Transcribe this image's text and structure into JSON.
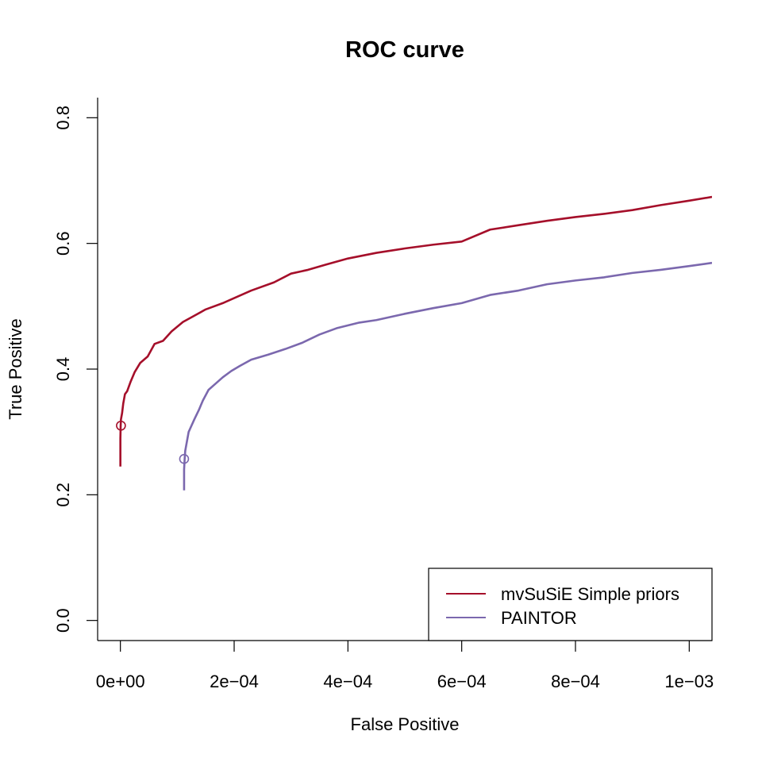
{
  "chart_data": {
    "type": "line",
    "title": "ROC curve",
    "xlabel": "False Positive",
    "ylabel": "True Positive",
    "xlim": [
      -4e-05,
      0.00104
    ],
    "ylim": [
      -0.032,
      0.832
    ],
    "x_ticks": [
      0,
      0.0002,
      0.0004,
      0.0006,
      0.0008,
      0.001
    ],
    "x_tick_labels": [
      "0e+00",
      "2e−04",
      "4e−04",
      "6e−04",
      "8e−04",
      "1e−03"
    ],
    "y_ticks": [
      0,
      0.2,
      0.4,
      0.6,
      0.8
    ],
    "y_tick_labels": [
      "0.0",
      "0.2",
      "0.4",
      "0.6",
      "0.8"
    ],
    "grid": false,
    "legend_position": "bottom-right",
    "series": [
      {
        "name": "mvSuSiE Simple priors",
        "color": "#a50f2a",
        "marker": {
          "x": 1e-06,
          "y": 0.31
        },
        "x": [
          0,
          0,
          5e-07,
          1e-06,
          3e-06,
          5e-06,
          8e-06,
          1.2e-05,
          1.8e-05,
          2.5e-05,
          3.5e-05,
          4.8e-05,
          6e-05,
          7.5e-05,
          9e-05,
          0.00011,
          0.00013,
          0.00015,
          0.00018,
          0.0002,
          0.00023,
          0.00027,
          0.0003,
          0.00033,
          0.00036,
          0.0004,
          0.00045,
          0.0005,
          0.00055,
          0.0006,
          0.00065,
          0.0007,
          0.00075,
          0.0008,
          0.00085,
          0.0009,
          0.00095,
          0.001,
          0.00104
        ],
        "y": [
          0.245,
          0.29,
          0.31,
          0.32,
          0.33,
          0.345,
          0.36,
          0.365,
          0.38,
          0.395,
          0.41,
          0.42,
          0.44,
          0.445,
          0.46,
          0.475,
          0.485,
          0.495,
          0.505,
          0.513,
          0.525,
          0.538,
          0.552,
          0.558,
          0.566,
          0.576,
          0.585,
          0.592,
          0.598,
          0.603,
          0.622,
          0.629,
          0.636,
          0.642,
          0.647,
          0.653,
          0.661,
          0.668,
          0.674
        ]
      },
      {
        "name": "PAINTOR",
        "color": "#7b68ae",
        "marker": {
          "x": 0.000112,
          "y": 0.257
        },
        "x": [
          0.000112,
          0.000112,
          0.000113,
          0.000114,
          0.000117,
          0.00012,
          0.000125,
          0.00013,
          0.000138,
          0.000145,
          0.000155,
          0.000165,
          0.00018,
          0.000195,
          0.00021,
          0.00023,
          0.00026,
          0.00029,
          0.00032,
          0.00035,
          0.00038,
          0.00042,
          0.00045,
          0.0005,
          0.00055,
          0.0006,
          0.00065,
          0.0007,
          0.00075,
          0.0008,
          0.00085,
          0.0009,
          0.00095,
          0.001,
          0.00104
        ],
        "y": [
          0.207,
          0.24,
          0.257,
          0.27,
          0.285,
          0.3,
          0.31,
          0.32,
          0.335,
          0.35,
          0.367,
          0.375,
          0.387,
          0.397,
          0.405,
          0.415,
          0.423,
          0.432,
          0.442,
          0.455,
          0.465,
          0.474,
          0.478,
          0.488,
          0.497,
          0.505,
          0.518,
          0.525,
          0.535,
          0.541,
          0.546,
          0.553,
          0.558,
          0.564,
          0.569
        ]
      }
    ]
  }
}
